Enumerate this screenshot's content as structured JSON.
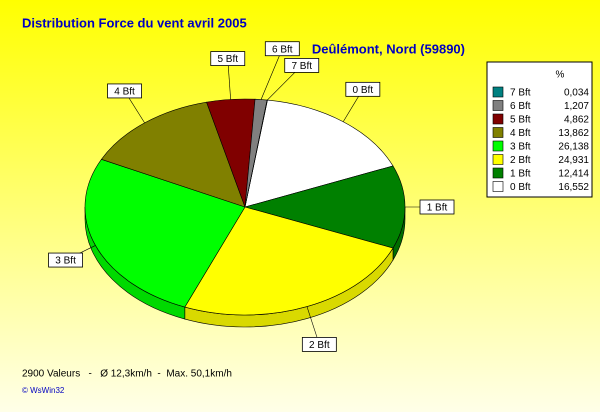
{
  "chart_data": {
    "type": "pie3d",
    "title": "Distribution Force du vent  avril 2005",
    "subtitle": "Deûlémont, Nord (59890)",
    "legend_header": "%",
    "categories": [
      "7 Bft",
      "6 Bft",
      "5 Bft",
      "4 Bft",
      "3 Bft",
      "2 Bft",
      "1 Bft",
      "0 Bft"
    ],
    "values": [
      0.034,
      1.207,
      4.862,
      13.862,
      26.138,
      24.931,
      12.414,
      16.552
    ],
    "value_labels": [
      "0,034",
      "1,207",
      "4,862",
      "13,862",
      "26,138",
      "24,931",
      "12,414",
      "16,552"
    ],
    "colors": [
      "#008080",
      "#808080",
      "#800000",
      "#808000",
      "#00ff00",
      "#ffff00",
      "#008000",
      "#ffffff"
    ],
    "legend": "right",
    "footer": "2900 Valeurs   -   Ø 12,3km/h  -  Max. 50,1km/h",
    "credit": "© WsWin32"
  }
}
